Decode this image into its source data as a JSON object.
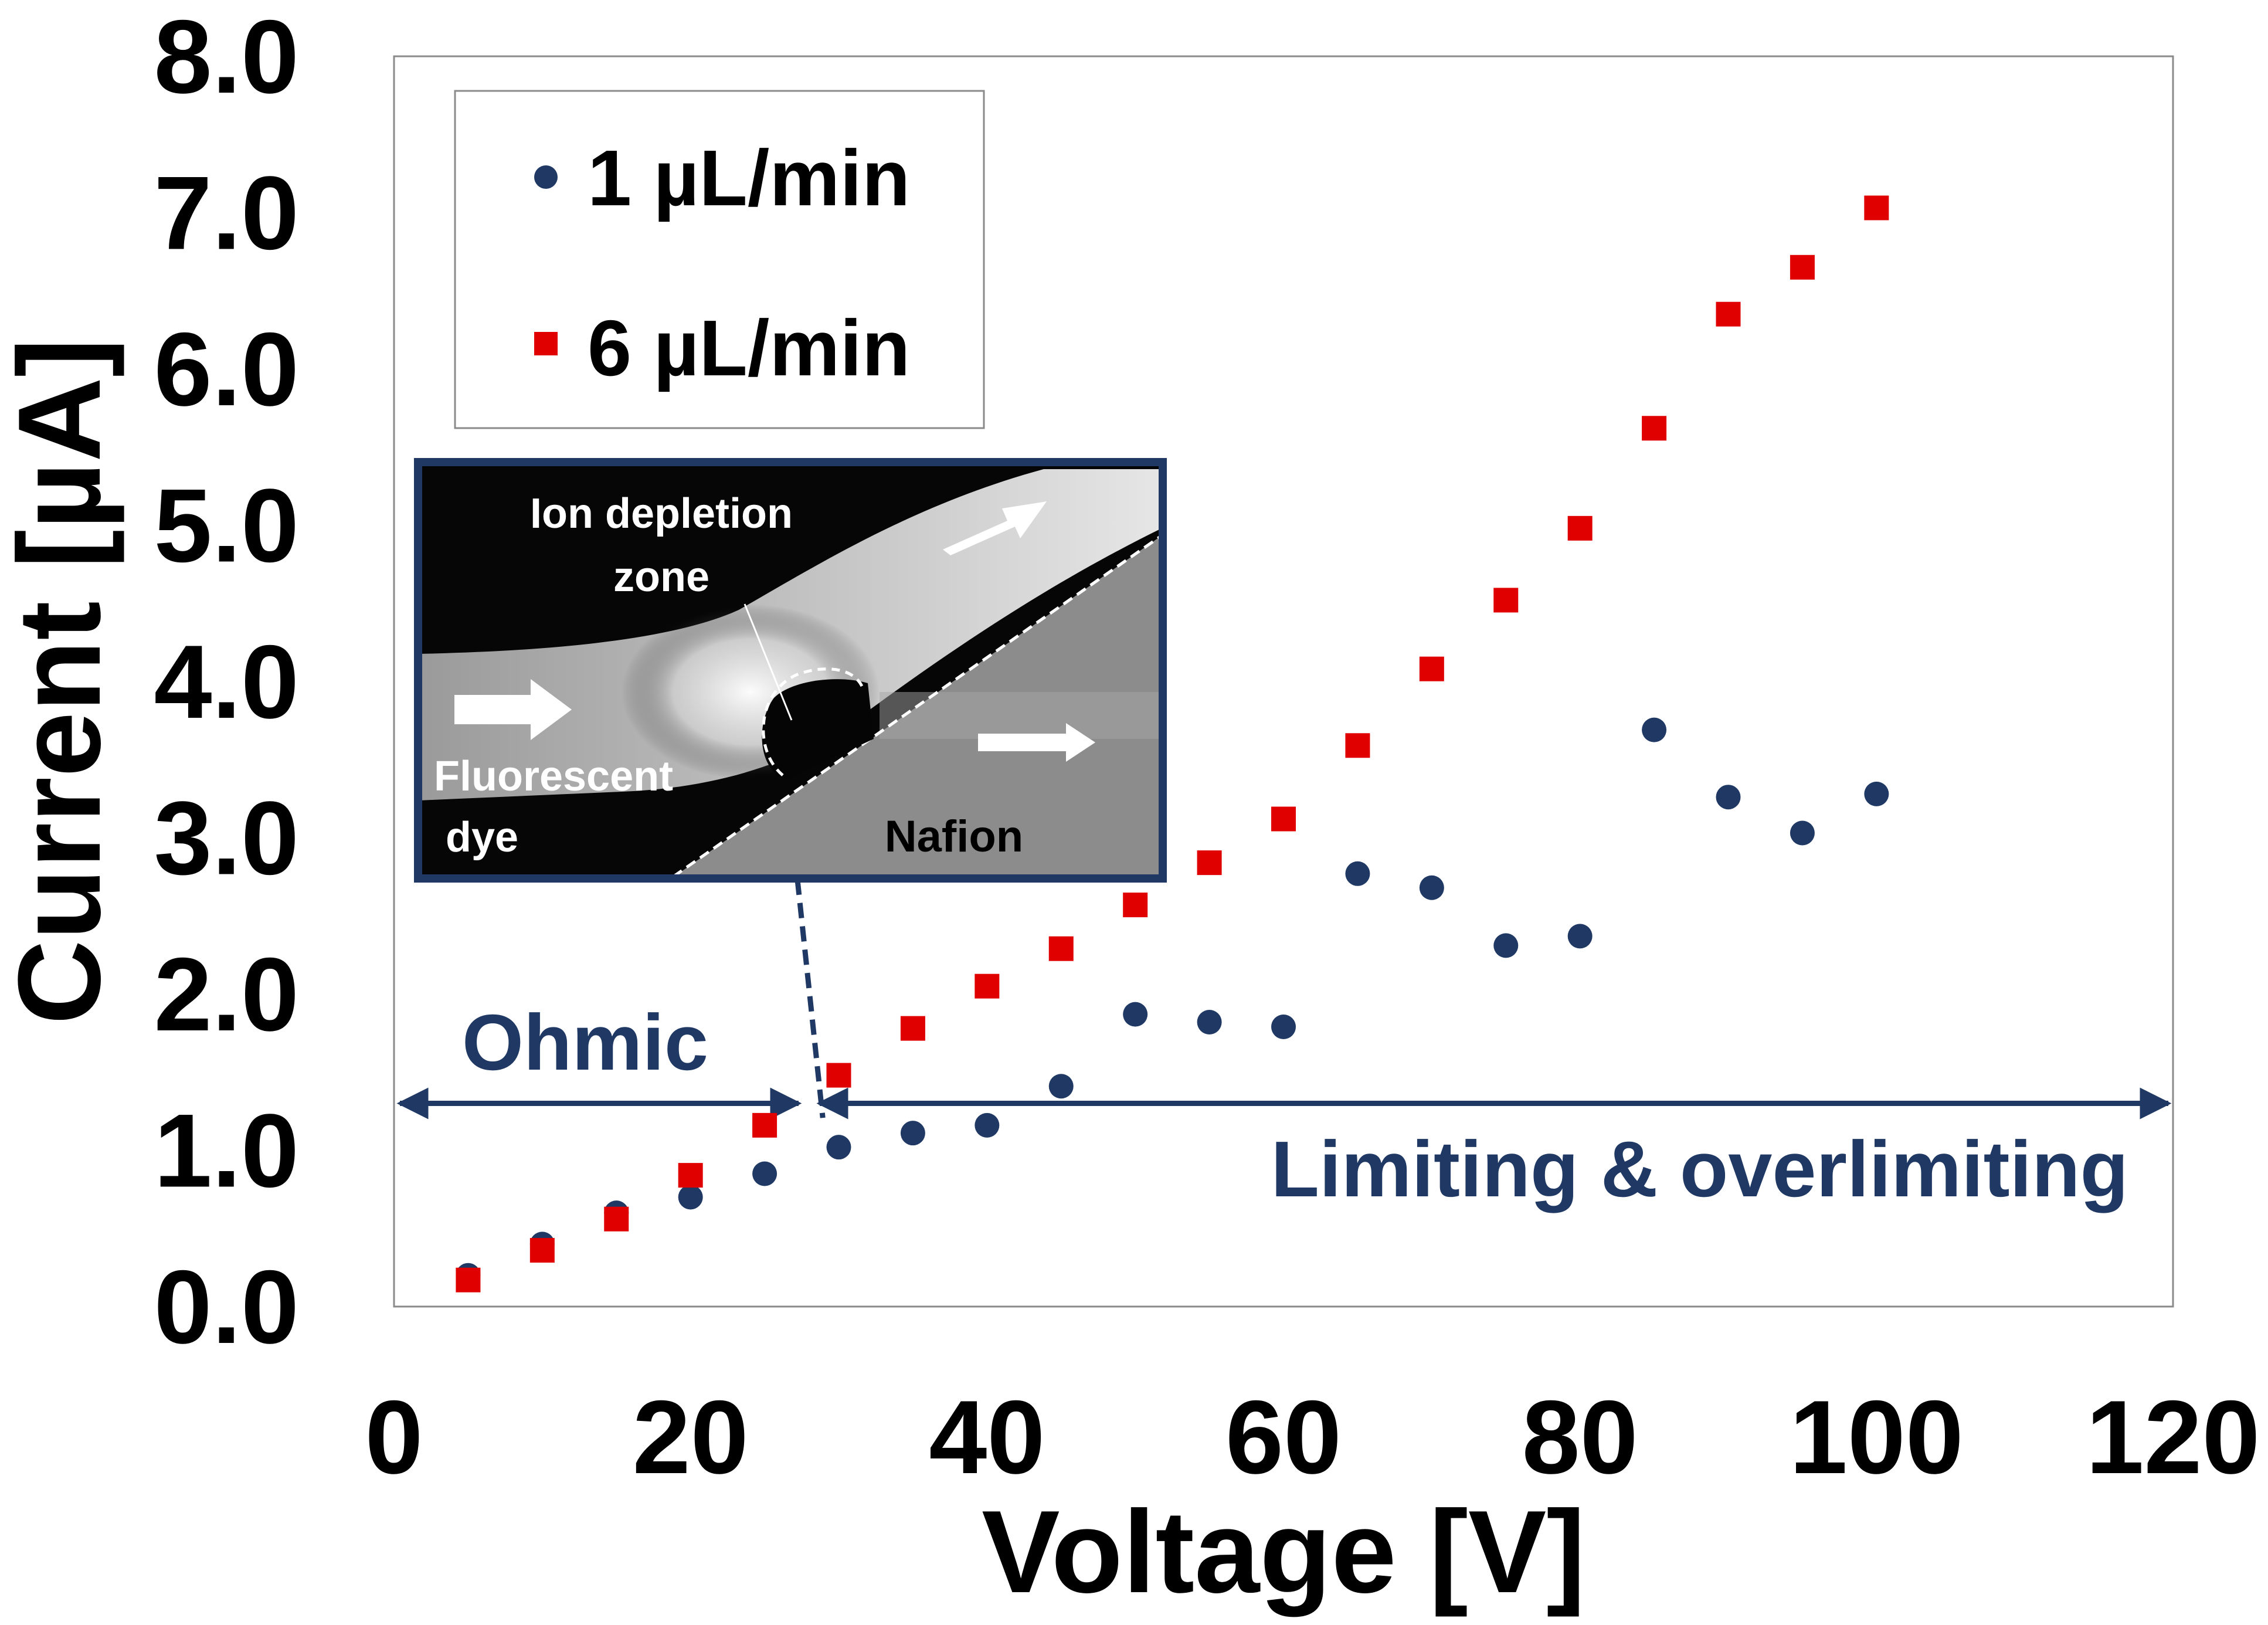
{
  "chart_data": {
    "type": "scatter",
    "xlabel": "Voltage [V]",
    "ylabel": "Current [µA]",
    "xlim": [
      0,
      120
    ],
    "ylim": [
      0.0,
      8.0
    ],
    "x_ticks": [
      "0",
      "20",
      "40",
      "60",
      "80",
      "100",
      "120"
    ],
    "y_ticks": [
      "0.0",
      "1.0",
      "2.0",
      "3.0",
      "4.0",
      "5.0",
      "6.0",
      "7.0",
      "8.0"
    ],
    "grid": false,
    "legend_position": "top-left",
    "series": [
      {
        "name": "1 µL/min",
        "marker": "circle",
        "color": "#1f3864",
        "x": [
          5,
          10,
          15,
          20,
          25,
          30,
          35,
          40,
          45,
          50,
          55,
          60,
          65,
          70,
          75,
          80,
          85,
          90,
          95,
          100
        ],
        "y": [
          0.2,
          0.4,
          0.6,
          0.7,
          0.85,
          1.02,
          1.11,
          1.16,
          1.41,
          1.87,
          1.82,
          1.79,
          2.77,
          2.68,
          2.31,
          2.37,
          3.69,
          3.26,
          3.03,
          3.28
        ]
      },
      {
        "name": "6 µL/min",
        "marker": "square",
        "color": "#e00000",
        "x": [
          5,
          10,
          15,
          20,
          25,
          30,
          35,
          40,
          45,
          50,
          55,
          60,
          65,
          70,
          75,
          80,
          85,
          90,
          95,
          100
        ],
        "y": [
          0.17,
          0.36,
          0.56,
          0.84,
          1.16,
          1.48,
          1.78,
          2.05,
          2.29,
          2.57,
          2.84,
          3.12,
          3.59,
          4.08,
          4.52,
          4.98,
          5.62,
          6.35,
          6.65,
          7.03
        ]
      }
    ],
    "annotations": {
      "ohmic": "Ohmic",
      "limiting": "Limiting & overlimiting",
      "boundary_x": 28,
      "boundary_y": 1.3
    },
    "inset": {
      "label_depletion_line1": "Ion depletion",
      "label_depletion_line2": "zone",
      "label_dye_line1": "Fluorescent",
      "label_dye_line2": "dye",
      "label_nafion": "Nafion",
      "pointer_x": 29,
      "pointer_y": 1.08
    }
  },
  "colors": {
    "navy": "#1f3864",
    "red": "#e00000",
    "frame": "#1f3864"
  }
}
